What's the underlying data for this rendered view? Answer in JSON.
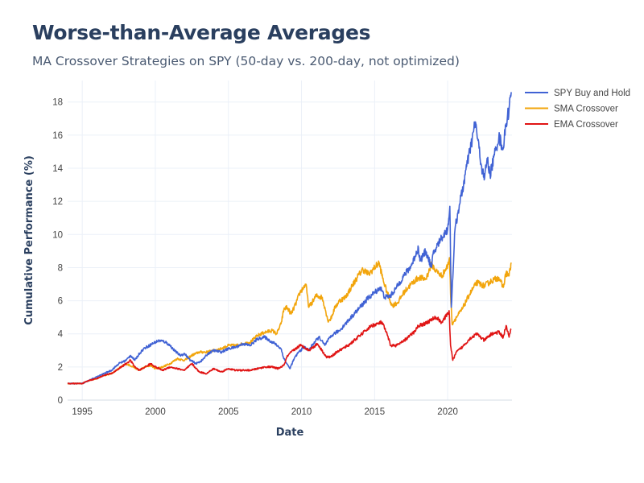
{
  "chart_data": {
    "type": "line",
    "title": "Worse-than-Average Averages",
    "subtitle": "MA Crossover Strategies on SPY (50-day vs. 200-day, not optimized)",
    "xlabel": "Date",
    "ylabel": "Cumulative Performance (%)",
    "xlim": [
      1994.0,
      2024.4
    ],
    "ylim": [
      0,
      19.3
    ],
    "x_ticks": [
      1995,
      2000,
      2005,
      2010,
      2015,
      2020
    ],
    "y_ticks": [
      0,
      2,
      4,
      6,
      8,
      10,
      12,
      14,
      16,
      18
    ],
    "grid": true,
    "legend_position": "top-right",
    "series": [
      {
        "name": "SPY Buy and Hold",
        "color": "#4062d4",
        "x": [
          1994.0,
          1994.5,
          1995.0,
          1995.5,
          1996.0,
          1996.5,
          1997.0,
          1997.5,
          1998.0,
          1998.3,
          1998.6,
          1998.9,
          1999.2,
          1999.6,
          2000.0,
          2000.3,
          2000.7,
          2001.0,
          2001.3,
          2001.7,
          2002.0,
          2002.4,
          2002.8,
          2003.2,
          2003.6,
          2004.0,
          2004.5,
          2005.0,
          2005.5,
          2006.0,
          2006.5,
          2007.0,
          2007.5,
          2007.8,
          2008.2,
          2008.6,
          2008.8,
          2009.0,
          2009.2,
          2009.5,
          2009.8,
          2010.2,
          2010.5,
          2010.8,
          2011.2,
          2011.6,
          2011.8,
          2012.2,
          2012.6,
          2013.0,
          2013.5,
          2014.0,
          2014.5,
          2015.0,
          2015.4,
          2015.7,
          2016.1,
          2016.5,
          2017.0,
          2017.5,
          2018.0,
          2018.1,
          2018.5,
          2018.9,
          2019.0,
          2019.5,
          2020.0,
          2020.15,
          2020.25,
          2020.5,
          2020.8,
          2021.0,
          2021.3,
          2021.6,
          2021.9,
          2022.0,
          2022.3,
          2022.5,
          2022.7,
          2022.9,
          2023.2,
          2023.5,
          2023.8,
          2024.0,
          2024.2,
          2024.35
        ],
        "y": [
          1.0,
          1.0,
          1.0,
          1.2,
          1.4,
          1.6,
          1.8,
          2.2,
          2.4,
          2.7,
          2.4,
          2.8,
          3.1,
          3.3,
          3.5,
          3.6,
          3.5,
          3.3,
          3.0,
          2.7,
          2.8,
          2.4,
          2.2,
          2.4,
          2.8,
          3.0,
          2.9,
          3.1,
          3.2,
          3.4,
          3.3,
          3.7,
          3.8,
          3.6,
          3.4,
          3.1,
          2.5,
          2.2,
          1.9,
          2.5,
          2.9,
          3.2,
          3.0,
          3.4,
          3.8,
          3.3,
          3.6,
          4.0,
          4.2,
          4.6,
          5.1,
          5.6,
          6.1,
          6.5,
          6.8,
          6.2,
          6.3,
          6.8,
          7.5,
          8.1,
          9.2,
          8.4,
          9.0,
          8.0,
          8.8,
          9.7,
          10.3,
          11.7,
          5.6,
          10.3,
          11.8,
          12.6,
          14.1,
          15.4,
          16.8,
          16.1,
          14.2,
          13.3,
          14.6,
          13.6,
          14.8,
          15.9,
          15.2,
          16.7,
          17.6,
          18.6
        ]
      },
      {
        "name": "SMA Crossover",
        "color": "#f2a50c",
        "x": [
          1994.0,
          1994.5,
          1995.0,
          1995.5,
          1996.0,
          1996.5,
          1997.0,
          1997.5,
          1998.0,
          1998.5,
          1998.9,
          1999.3,
          1999.7,
          2000.0,
          2000.5,
          2001.0,
          2001.5,
          2002.0,
          2002.5,
          2003.0,
          2003.5,
          2004.0,
          2004.5,
          2005.0,
          2005.5,
          2006.0,
          2006.5,
          2007.0,
          2007.5,
          2008.0,
          2008.3,
          2008.6,
          2008.8,
          2009.0,
          2009.3,
          2009.6,
          2009.9,
          2010.3,
          2010.5,
          2010.8,
          2011.0,
          2011.4,
          2011.6,
          2011.8,
          2012.0,
          2012.3,
          2012.6,
          2013.0,
          2013.4,
          2013.8,
          2014.2,
          2014.6,
          2015.0,
          2015.3,
          2015.6,
          2015.9,
          2016.2,
          2016.6,
          2017.0,
          2017.5,
          2018.0,
          2018.5,
          2018.9,
          2019.2,
          2019.6,
          2020.0,
          2020.12,
          2020.2,
          2020.3,
          2020.6,
          2021.0,
          2021.5,
          2022.0,
          2022.5,
          2023.0,
          2023.5,
          2023.8,
          2024.0,
          2024.2,
          2024.35
        ],
        "y": [
          1.0,
          1.0,
          1.0,
          1.2,
          1.3,
          1.5,
          1.6,
          1.9,
          2.2,
          2.0,
          1.8,
          2.0,
          2.1,
          1.9,
          2.0,
          2.2,
          2.5,
          2.4,
          2.7,
          2.9,
          2.9,
          3.0,
          3.1,
          3.3,
          3.3,
          3.4,
          3.5,
          3.9,
          4.1,
          4.2,
          4.0,
          4.6,
          5.5,
          5.6,
          5.2,
          5.8,
          6.5,
          7.0,
          5.6,
          6.0,
          6.3,
          6.2,
          5.6,
          4.8,
          4.9,
          5.6,
          6.0,
          6.2,
          6.8,
          7.4,
          7.9,
          7.6,
          8.0,
          8.3,
          7.2,
          6.4,
          5.7,
          5.9,
          6.5,
          7.0,
          7.4,
          7.3,
          8.2,
          7.8,
          7.5,
          8.1,
          8.6,
          6.4,
          4.6,
          5.0,
          5.5,
          6.4,
          7.1,
          6.9,
          7.2,
          7.4,
          6.8,
          7.7,
          7.5,
          8.3
        ]
      },
      {
        "name": "EMA Crossover",
        "color": "#e01414",
        "x": [
          1994.0,
          1994.5,
          1995.0,
          1995.5,
          1996.0,
          1996.5,
          1997.0,
          1997.5,
          1998.0,
          1998.3,
          1998.6,
          1998.9,
          1999.3,
          1999.7,
          2000.0,
          2000.5,
          2001.0,
          2001.5,
          2002.0,
          2002.5,
          2003.0,
          2003.5,
          2004.0,
          2004.5,
          2005.0,
          2005.5,
          2006.0,
          2006.5,
          2007.0,
          2007.5,
          2008.0,
          2008.4,
          2008.8,
          2009.0,
          2009.3,
          2009.6,
          2009.9,
          2010.2,
          2010.5,
          2010.8,
          2011.1,
          2011.4,
          2011.7,
          2012.0,
          2012.4,
          2012.8,
          2013.2,
          2013.6,
          2014.0,
          2014.4,
          2014.8,
          2015.2,
          2015.5,
          2015.8,
          2016.1,
          2016.5,
          2016.9,
          2017.3,
          2017.7,
          2018.0,
          2018.4,
          2018.8,
          2019.2,
          2019.6,
          2020.0,
          2020.1,
          2020.2,
          2020.35,
          2020.6,
          2021.0,
          2021.5,
          2022.0,
          2022.5,
          2023.0,
          2023.5,
          2023.8,
          2024.0,
          2024.2,
          2024.35
        ],
        "y": [
          1.0,
          1.0,
          1.0,
          1.2,
          1.3,
          1.5,
          1.6,
          1.9,
          2.2,
          2.4,
          2.0,
          1.8,
          2.0,
          2.2,
          2.0,
          1.8,
          2.0,
          1.9,
          1.8,
          2.2,
          1.7,
          1.6,
          1.9,
          1.7,
          1.9,
          1.8,
          1.8,
          1.8,
          1.9,
          2.0,
          2.0,
          1.9,
          2.1,
          2.6,
          2.9,
          3.1,
          3.3,
          3.2,
          3.0,
          3.2,
          3.4,
          3.0,
          2.6,
          2.6,
          2.9,
          3.1,
          3.3,
          3.6,
          3.9,
          4.2,
          4.5,
          4.6,
          4.7,
          4.1,
          3.3,
          3.3,
          3.5,
          3.8,
          4.1,
          4.5,
          4.6,
          4.8,
          5.0,
          4.7,
          5.2,
          5.4,
          3.3,
          2.4,
          2.9,
          3.2,
          3.7,
          4.0,
          3.6,
          4.0,
          4.1,
          3.8,
          4.5,
          3.8,
          4.3
        ]
      }
    ]
  }
}
